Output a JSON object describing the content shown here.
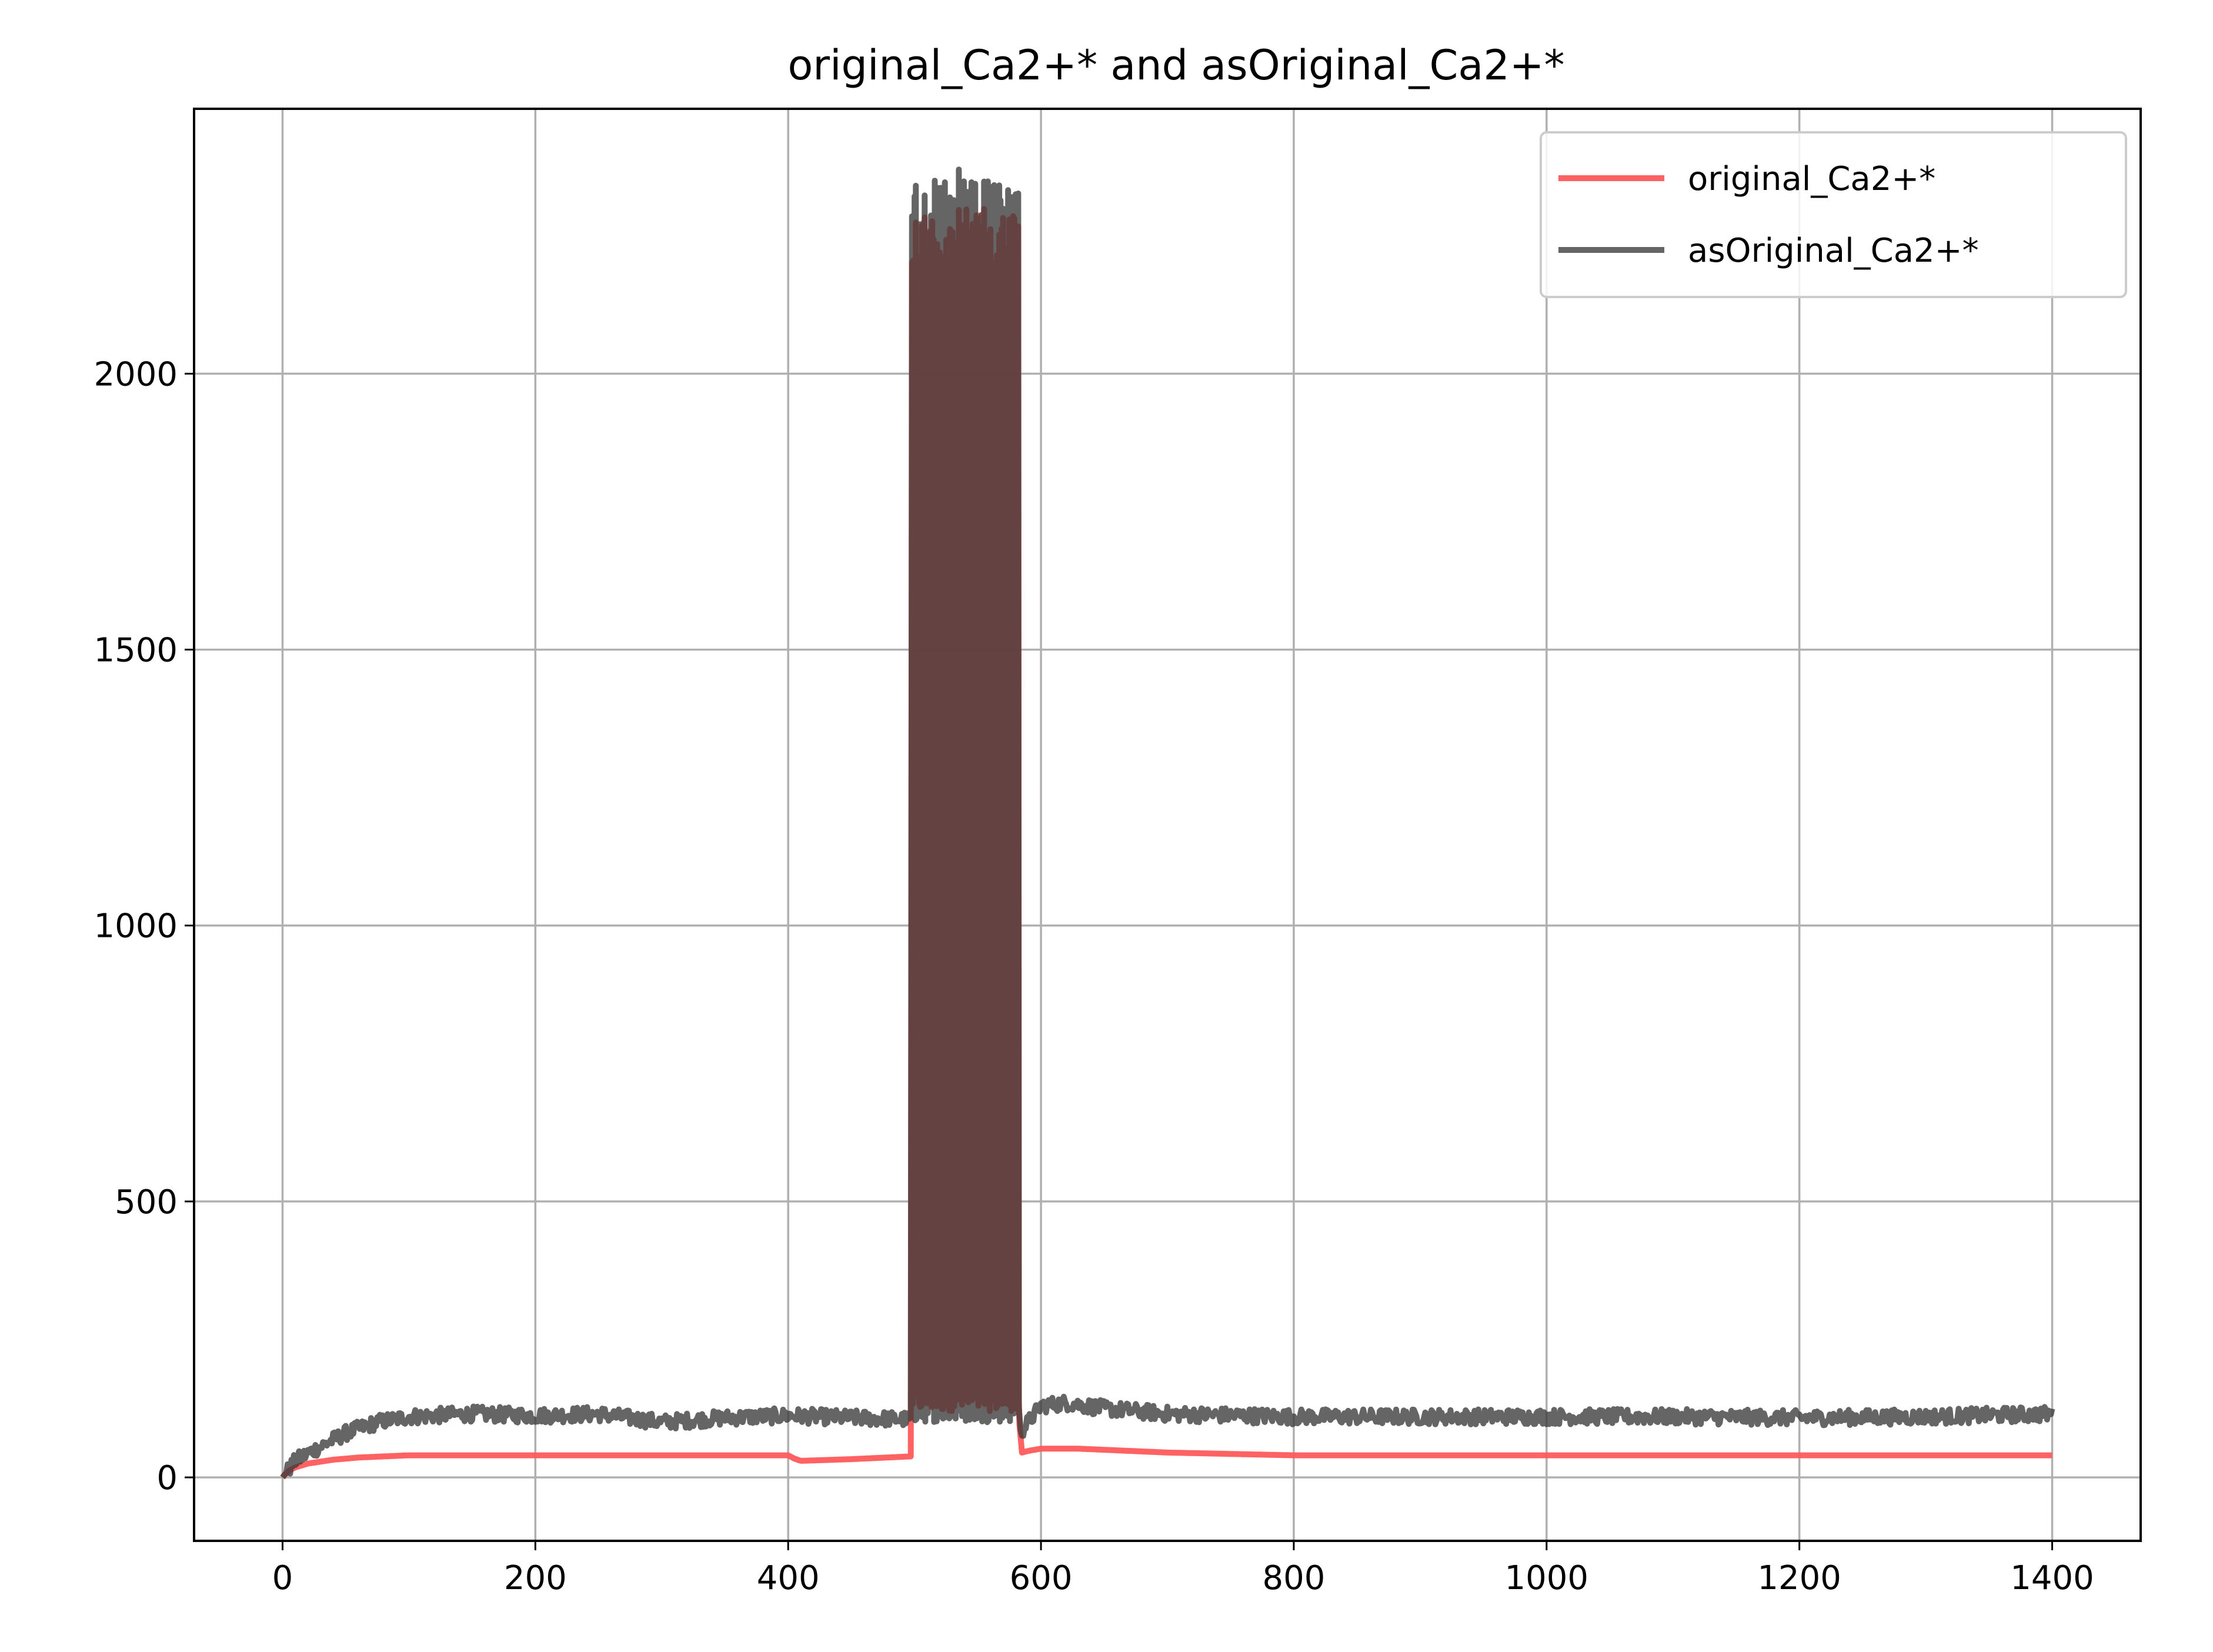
{
  "chart_data": {
    "type": "line",
    "title": "original_Ca2+* and asOriginal_Ca2+*",
    "xlabel": "",
    "ylabel": "",
    "xlim": [
      -70,
      1470
    ],
    "ylim": [
      -115,
      2480
    ],
    "xticks": [
      0,
      200,
      400,
      600,
      800,
      1000,
      1200,
      1400
    ],
    "yticks": [
      0,
      500,
      1000,
      1500,
      2000
    ],
    "grid": true,
    "legend_position": "upper right",
    "series": [
      {
        "name": "original_Ca2+*",
        "color": "#ff5a5a",
        "description": "rises from 0 to ~40 by x=100, flat ~40 to x=400, dips to ~30 at x=410 and recovers to ~38 by x=497, oscillates between ~120 and ~2300 from x=498 to x=582, drops to ~45 at x=585, ~52 at x=600-630, decays to ~40 by x=800, flat ~40 to x=1400",
        "x": [
          0,
          5,
          10,
          20,
          40,
          60,
          100,
          150,
          200,
          300,
          400,
          405,
          410,
          450,
          497,
          498,
          582,
          585,
          590,
          600,
          630,
          700,
          800,
          1000,
          1200,
          1400
        ],
        "y": [
          0,
          12,
          18,
          25,
          32,
          36,
          40,
          40,
          40,
          40,
          40,
          34,
          30,
          33,
          38,
          120,
          120,
          45,
          48,
          52,
          52,
          45,
          40,
          40,
          40,
          40
        ],
        "burst": {
          "x_start": 498,
          "x_end": 582,
          "low": 120,
          "high": 2300
        }
      },
      {
        "name": "asOriginal_Ca2+*",
        "color": "#3a3a3a",
        "description": "noisy trace rising from 0 to ~110 by x=100, noisy ~110 (+/-15) through x=497, burst between ~100 and ~2350 from x=498 to x=582 (peak ~2370 near x=535), drop to ~85 at x=585, ~135 at x=600-640, noisy ~110 to x=1400",
        "x": [
          0,
          10,
          25,
          50,
          75,
          100,
          150,
          200,
          250,
          300,
          350,
          400,
          450,
          497,
          498,
          582,
          585,
          600,
          620,
          650,
          700,
          800,
          900,
          1000,
          1100,
          1200,
          1300,
          1400
        ],
        "y": [
          0,
          30,
          50,
          80,
          100,
          110,
          115,
          112,
          115,
          100,
          108,
          112,
          108,
          105,
          110,
          110,
          85,
          130,
          135,
          125,
          115,
          110,
          110,
          110,
          110,
          108,
          110,
          115
        ],
        "burst": {
          "x_start": 498,
          "x_end": 582,
          "low": 100,
          "high": 2350,
          "peak_x": 535,
          "peak_y": 2370
        }
      }
    ]
  }
}
